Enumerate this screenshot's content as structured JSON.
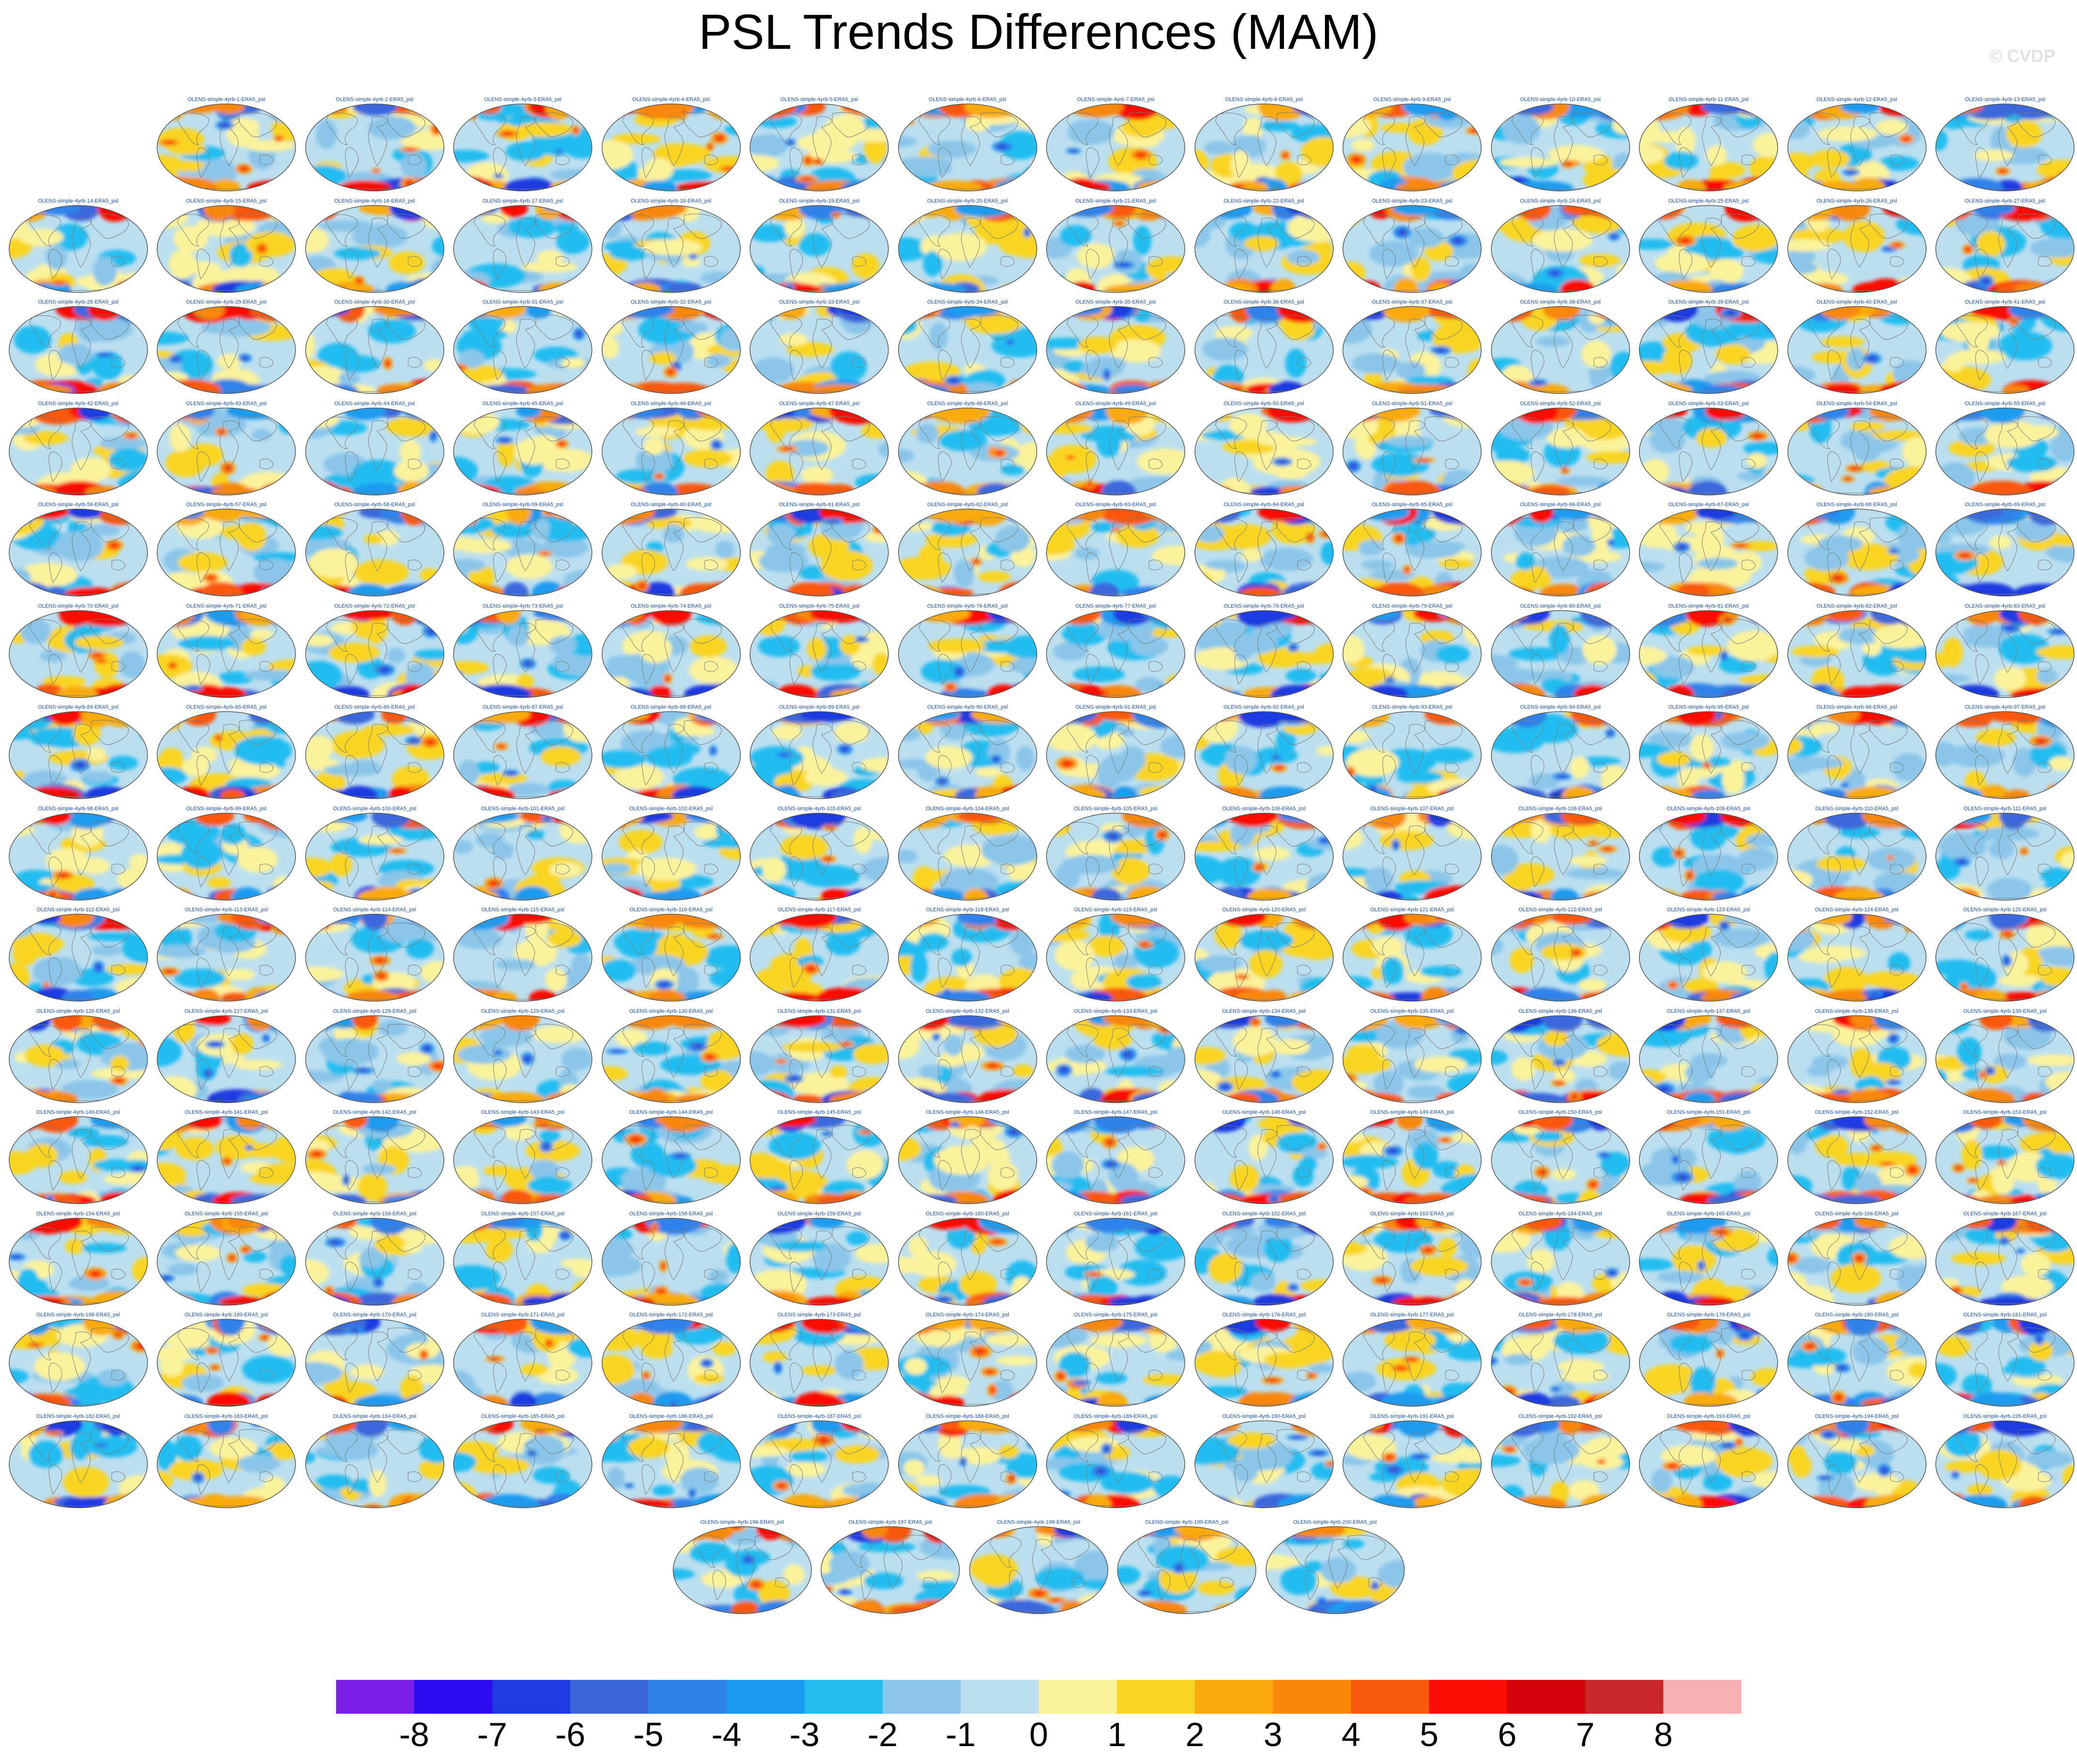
{
  "title": "PSL Trends Differences (MAM)",
  "watermark": "© CVDP",
  "panel_label_prefix": "OLENS-simple-4yrb-",
  "panel_label_suffix": "-ERA5_psl",
  "chart_data": {
    "type": "heatmap",
    "title": "PSL Trends Differences (MAM)",
    "projection": "global map panels (one per ensemble member)",
    "panel_count": 200,
    "panel_labels": "OLENS-simple-4yrb-1-ERA5_psl … OLENS-simple-4yrb-200-ERA5_psl",
    "layout_rows": [
      13,
      14,
      14,
      14,
      14,
      14,
      14,
      14,
      14,
      14,
      14,
      14,
      14,
      14,
      5
    ],
    "colorbar": {
      "tick_labels": [
        "-8",
        "-7",
        "-6",
        "-5",
        "-4",
        "-3",
        "-2",
        "-1",
        "0",
        "1",
        "2",
        "3",
        "4",
        "5",
        "6",
        "7",
        "8"
      ],
      "levels": [
        -8,
        -7,
        -6,
        -5,
        -4,
        -3,
        -2,
        -1,
        0,
        1,
        2,
        3,
        4,
        5,
        6,
        7,
        8
      ],
      "colors": [
        "#7c1fe6",
        "#2c0df2",
        "#1f3be0",
        "#3a67dc",
        "#2f82ea",
        "#1a9bef",
        "#24bdf0",
        "#8ac6ea",
        "#bcdff0",
        "#fbf39c",
        "#f9d523",
        "#f9aa0c",
        "#f8870a",
        "#f9590a",
        "#fa0e05",
        "#d20509",
        "#c8272c",
        "#f7b1b3"
      ]
    }
  },
  "map_colors": {
    "ocean_base": "#bcdff0",
    "land_line": "#7a7a7a",
    "border": "#555555",
    "palette_pos": [
      "#fbf39c",
      "#f9d523",
      "#f9aa0c",
      "#f8870a",
      "#f9590a",
      "#fa0e05",
      "#d20509"
    ],
    "palette_neg": [
      "#8ac6ea",
      "#24bdf0",
      "#1a9bef",
      "#2f82ea",
      "#3a67dc",
      "#1f3be0",
      "#2c0df2"
    ]
  }
}
